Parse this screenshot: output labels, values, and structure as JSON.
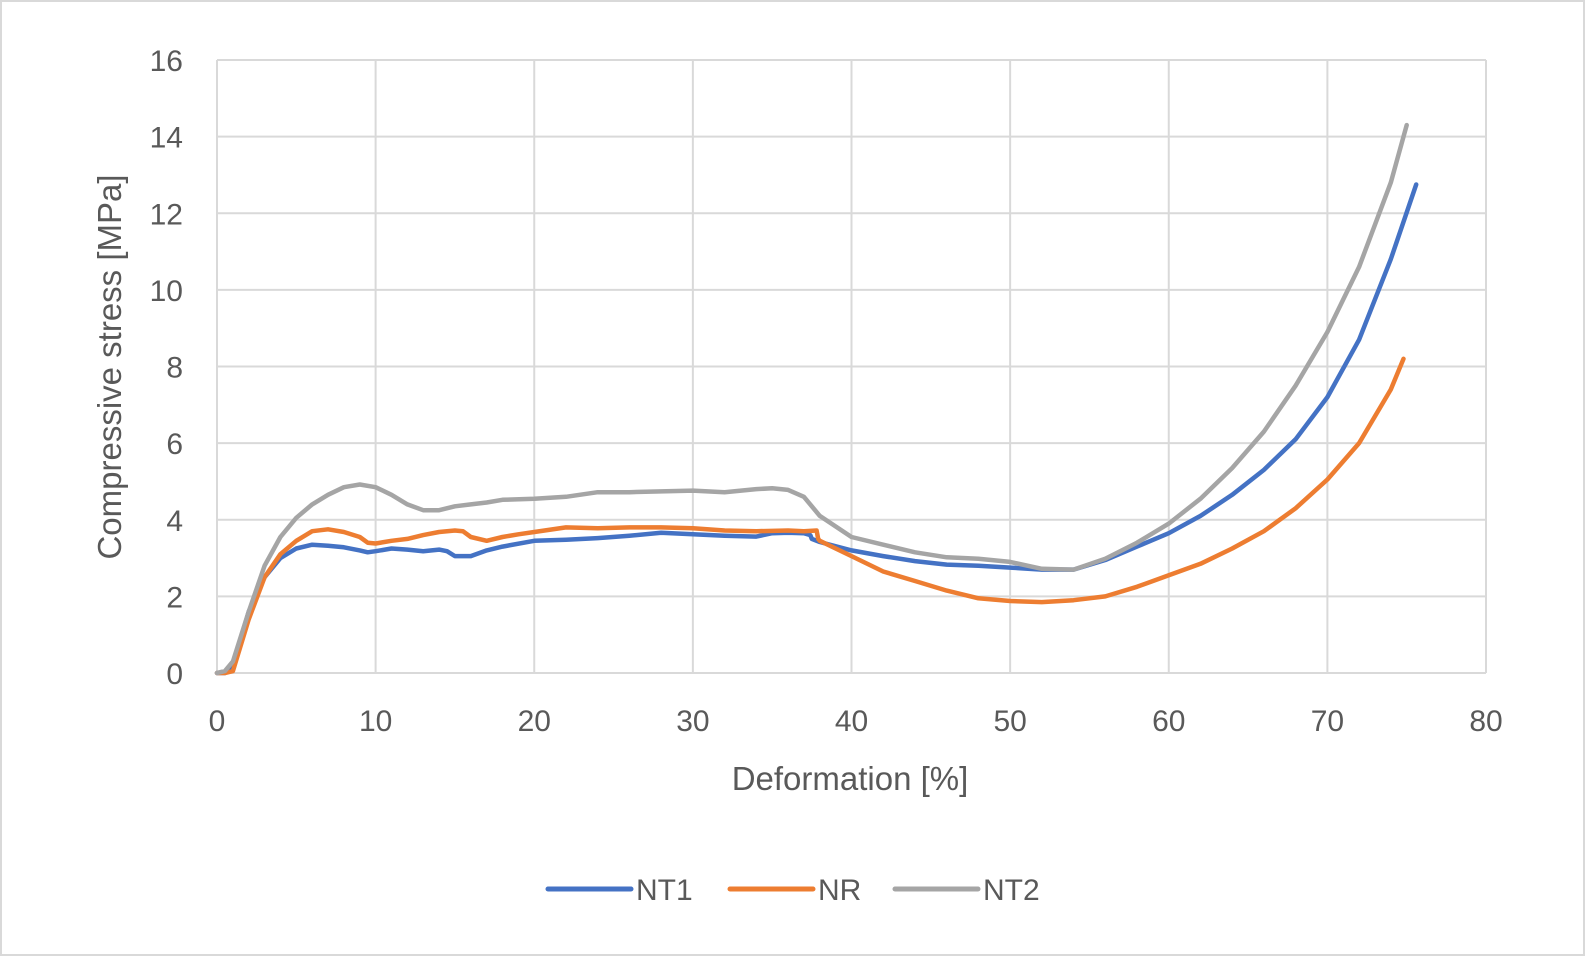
{
  "chart_data": {
    "type": "line",
    "xlabel": "Deformation [%]",
    "ylabel": "Compressive stress [MPa]",
    "xlim": [
      0,
      80
    ],
    "ylim": [
      0,
      16
    ],
    "xticks": [
      0,
      10,
      20,
      30,
      40,
      50,
      60,
      70,
      80
    ],
    "yticks": [
      0,
      2,
      4,
      6,
      8,
      10,
      12,
      14,
      16
    ],
    "grid": true,
    "legend": "bottom",
    "series": [
      {
        "name": "NT1",
        "color": "#4472c4",
        "x": [
          0,
          0.5,
          1,
          2,
          3,
          4,
          5,
          6,
          7,
          8,
          9,
          9.5,
          10,
          11,
          12,
          13,
          14,
          14.5,
          15,
          16,
          17,
          18,
          20,
          22,
          24,
          26,
          28,
          30,
          32,
          34,
          35,
          36,
          37,
          37.4,
          37.5,
          38,
          40,
          42,
          44,
          46,
          48,
          50,
          52,
          54,
          56,
          58,
          60,
          62,
          64,
          66,
          68,
          70,
          72,
          74,
          75.6
        ],
        "y": [
          0,
          0,
          0.2,
          1.6,
          2.5,
          3,
          3.25,
          3.35,
          3.32,
          3.28,
          3.2,
          3.15,
          3.18,
          3.25,
          3.22,
          3.18,
          3.22,
          3.18,
          3.05,
          3.05,
          3.2,
          3.3,
          3.45,
          3.48,
          3.52,
          3.58,
          3.66,
          3.62,
          3.58,
          3.56,
          3.65,
          3.66,
          3.65,
          3.6,
          3.5,
          3.42,
          3.2,
          3.05,
          2.92,
          2.83,
          2.8,
          2.75,
          2.7,
          2.7,
          2.95,
          3.3,
          3.65,
          4.1,
          4.65,
          5.3,
          6.1,
          7.2,
          8.7,
          10.8,
          12.75
        ]
      },
      {
        "name": "NR",
        "color": "#ed7d31",
        "x": [
          0,
          0.5,
          1,
          2,
          3,
          4,
          5,
          6,
          7,
          8,
          9,
          9.5,
          10,
          11,
          12,
          13,
          14,
          15,
          15.5,
          16,
          17,
          18,
          19,
          20,
          22,
          24,
          26,
          28,
          30,
          32,
          34,
          36,
          37,
          37.8,
          37.9,
          38,
          40,
          42,
          44,
          46,
          48,
          50,
          52,
          54,
          56,
          58,
          60,
          62,
          64,
          66,
          68,
          70,
          72,
          74,
          74.8
        ],
        "y": [
          0,
          0,
          0.05,
          1.4,
          2.5,
          3.1,
          3.45,
          3.7,
          3.75,
          3.68,
          3.55,
          3.4,
          3.38,
          3.45,
          3.5,
          3.6,
          3.68,
          3.72,
          3.7,
          3.55,
          3.45,
          3.55,
          3.62,
          3.68,
          3.8,
          3.78,
          3.8,
          3.8,
          3.78,
          3.72,
          3.7,
          3.72,
          3.7,
          3.72,
          3.5,
          3.45,
          3.05,
          2.65,
          2.4,
          2.15,
          1.95,
          1.88,
          1.85,
          1.9,
          2.0,
          2.25,
          2.55,
          2.85,
          3.25,
          3.7,
          4.3,
          5.05,
          6.0,
          7.4,
          8.2
        ]
      },
      {
        "name": "NT2",
        "color": "#a5a5a5",
        "x": [
          0,
          0.5,
          1,
          2,
          3,
          4,
          5,
          6,
          7,
          8,
          9,
          10,
          11,
          12,
          13,
          14,
          15,
          16,
          17,
          18,
          20,
          22,
          24,
          26,
          28,
          30,
          32,
          34,
          35,
          36,
          37,
          38,
          40,
          42,
          44,
          46,
          48,
          50,
          52,
          54,
          56,
          58,
          60,
          62,
          64,
          66,
          68,
          70,
          72,
          74,
          75
        ],
        "y": [
          0,
          0.05,
          0.3,
          1.6,
          2.8,
          3.55,
          4.05,
          4.4,
          4.65,
          4.85,
          4.92,
          4.85,
          4.65,
          4.4,
          4.25,
          4.25,
          4.35,
          4.4,
          4.45,
          4.52,
          4.55,
          4.6,
          4.72,
          4.72,
          4.74,
          4.76,
          4.72,
          4.8,
          4.82,
          4.78,
          4.6,
          4.1,
          3.55,
          3.35,
          3.15,
          3.02,
          2.98,
          2.9,
          2.72,
          2.7,
          2.98,
          3.4,
          3.9,
          4.55,
          5.35,
          6.3,
          7.5,
          8.9,
          10.6,
          12.8,
          14.3
        ]
      }
    ]
  }
}
